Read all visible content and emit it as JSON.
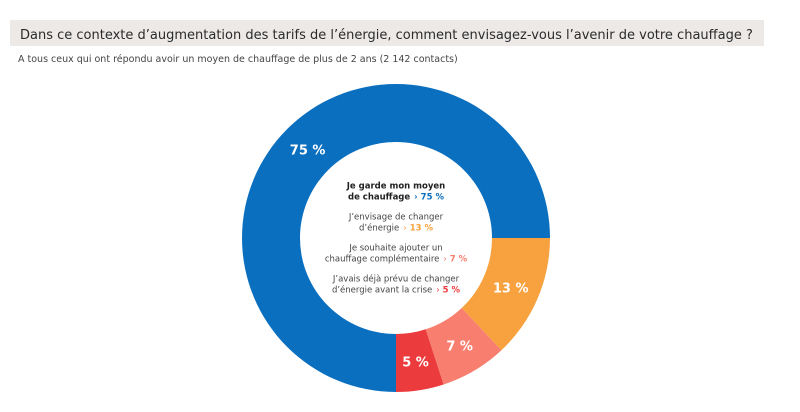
{
  "header": {
    "title": "Dans ce contexte d’augmentation des tarifs de l’énergie, comment envisagez-vous l’avenir de votre chauffage ?",
    "subtitle": "A tous ceux qui ont répondu avoir un moyen de chauffage de plus de 2 ans (2 142 contacts)"
  },
  "chart_data": {
    "type": "pie",
    "donut": true,
    "categories": [
      "Je garde mon moyen de chauffage",
      "J’envisage de changer d’énergie",
      "Je souhaite ajouter un chauffage complémentaire",
      "J’avais déjà prévu de changer d’énergie avant la crise"
    ],
    "values": [
      75,
      13,
      7,
      5
    ],
    "data_labels": [
      "75 %",
      "13 %",
      "7 %",
      "5 %"
    ],
    "colors": [
      "#0b6fbf",
      "#f7a23e",
      "#f87f70",
      "#ec3b3c"
    ],
    "legend_position": "center",
    "legend": [
      {
        "lines": [
          "Je garde mon moyen",
          "de chauffage"
        ],
        "value": "75 %",
        "bold": true
      },
      {
        "lines": [
          "J’envisage de changer",
          "d’énergie"
        ],
        "value": "13 %",
        "bold": false
      },
      {
        "lines": [
          "Je souhaite ajouter un",
          "chauffage complémentaire"
        ],
        "value": "7 %",
        "bold": false
      },
      {
        "lines": [
          "J’avais déjà prévu de changer",
          "d’énergie avant la crise"
        ],
        "value": "5 %",
        "bold": false
      }
    ],
    "legend_arrow": "›"
  }
}
